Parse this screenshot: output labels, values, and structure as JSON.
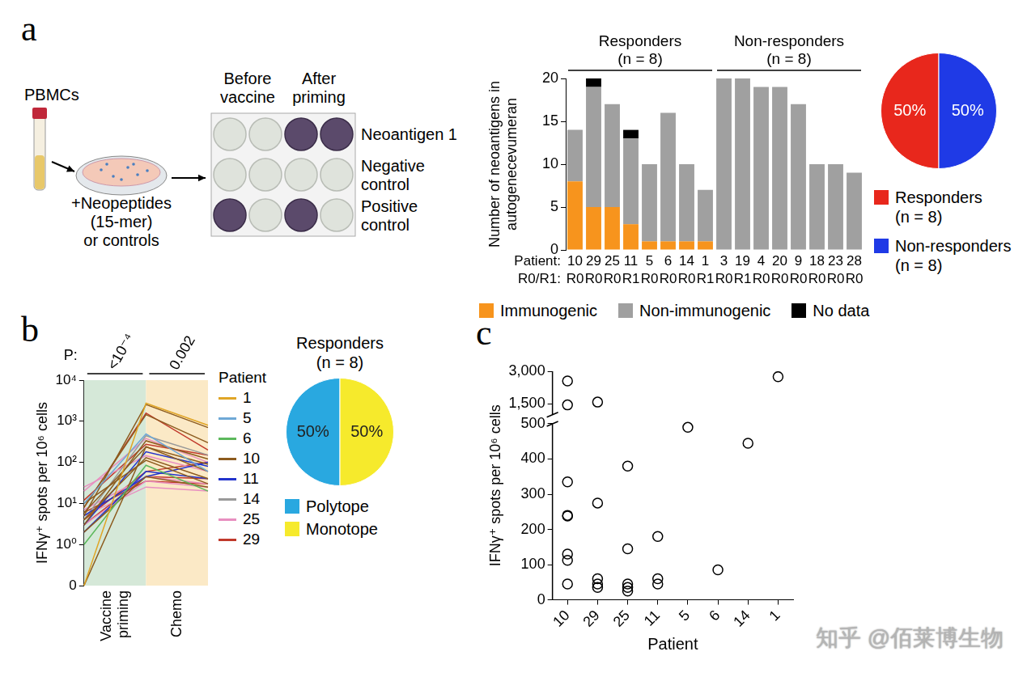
{
  "panel_letters": [
    "a",
    "b",
    "c"
  ],
  "watermark": "知乎 @佰莱博生物",
  "schematic": {
    "source": "PBMCs",
    "treatment": "+Neopeptides\n(15-mer)\nor controls",
    "columns": [
      "Before\nvaccine",
      "After\npriming"
    ],
    "rows": [
      {
        "label": "Neoantigen 1",
        "spots": [
          false,
          false,
          true,
          true
        ]
      },
      {
        "label": "Negative\ncontrol",
        "spots": [
          false,
          false,
          false,
          false
        ]
      },
      {
        "label": "Positive\ncontrol",
        "spots": [
          true,
          false,
          true,
          false
        ]
      }
    ]
  },
  "chart_data": [
    {
      "type": "bar",
      "stacked": true,
      "y_label": "Number of neoantigens in\nautogenecevumeran",
      "categories": [
        "10",
        "29",
        "25",
        "11",
        "5",
        "6",
        "14",
        "1",
        "3",
        "19",
        "4",
        "20",
        "9",
        "18",
        "23",
        "28"
      ],
      "category_label": "Patient:",
      "resection": {
        "label": "R0/R1:",
        "values": [
          "R0",
          "R0",
          "R0",
          "R1",
          "R0",
          "R0",
          "R0",
          "R1",
          "R0",
          "R1",
          "R0",
          "R0",
          "R0",
          "R0",
          "R0",
          "R0"
        ]
      },
      "groups": [
        {
          "label": "Responders\n(n = 8)",
          "members": [
            "10",
            "29",
            "25",
            "11",
            "5",
            "6",
            "14",
            "1"
          ]
        },
        {
          "label": "Non-responders\n(n = 8)",
          "members": [
            "3",
            "19",
            "4",
            "20",
            "9",
            "18",
            "23",
            "28"
          ]
        }
      ],
      "series": [
        {
          "name": "Immunogenic",
          "color": "#f7941d",
          "values": [
            8,
            5,
            5,
            3,
            1,
            1,
            1,
            1,
            0,
            0,
            0,
            0,
            0,
            0,
            0,
            0
          ]
        },
        {
          "name": "Non-immunogenic",
          "color": "#a0a0a0",
          "values": [
            6,
            14,
            12,
            10,
            9,
            15,
            9,
            6,
            20,
            20,
            19,
            19,
            17,
            10,
            10,
            9
          ]
        },
        {
          "name": "No data",
          "color": "#000000",
          "values": [
            0,
            1,
            0,
            1,
            0,
            0,
            0,
            0,
            0,
            0,
            0,
            0,
            0,
            0,
            0,
            0
          ]
        }
      ],
      "ylim": [
        0,
        20
      ],
      "yticks": [
        0,
        5,
        10,
        15,
        20
      ],
      "grid": false,
      "legend": "bottom"
    },
    {
      "type": "pie",
      "categories": [
        "Responders\n(n = 8)",
        "Non-responders\n(n = 8)"
      ],
      "values": [
        50,
        50
      ],
      "value_labels": [
        "50%",
        "50%"
      ],
      "colors": [
        "#e8271c",
        "#1f3ae6"
      ],
      "data_labels": true,
      "legend": "bottom"
    },
    {
      "type": "line",
      "log": "y",
      "y_label": "IFNγ⁺ spots per 10⁶ cells",
      "categories": [
        null,
        null,
        null
      ],
      "phases": [
        {
          "name": "Vaccine\npriming",
          "color": "#d5e8d8",
          "p": {
            "value": 0.0001,
            "label": "<10⁻⁴"
          }
        },
        {
          "name": "Chemo",
          "color": "#fbe9c6",
          "p": 0.002
        }
      ],
      "p_label": "P:",
      "legend_title": "Patient",
      "series": [
        {
          "name": "1",
          "color": "#e0a526",
          "values": [
            [
              0,
              2750,
              800
            ]
          ]
        },
        {
          "name": "5",
          "color": "#6fa8d6",
          "values": [
            [
              10,
              490,
              60
            ]
          ]
        },
        {
          "name": "6",
          "color": "#5cb85c",
          "values": [
            [
              1,
              85,
              20
            ]
          ]
        },
        {
          "name": "10",
          "color": "#8c5b1e",
          "values": [
            [
              5,
              2550,
              700
            ],
            [
              8,
              1450,
              300
            ],
            [
              3,
              335,
              120
            ],
            [
              0,
              240,
              60
            ],
            [
              6,
              238,
              90
            ],
            [
              4,
              130,
              40
            ],
            [
              10,
              112,
              30
            ],
            [
              2,
              45,
              25
            ]
          ]
        },
        {
          "name": "11",
          "color": "#2233cc",
          "values": [
            [
              3,
              180,
              80
            ],
            [
              2,
              60,
              40
            ],
            [
              5,
              45,
              100
            ]
          ]
        },
        {
          "name": "14",
          "color": "#999999",
          "values": [
            [
              4,
              445,
              150
            ]
          ]
        },
        {
          "name": "25",
          "color": "#e88fc0",
          "values": [
            [
              20,
              380,
              100
            ],
            [
              25,
              145,
              60
            ],
            [
              7,
              45,
              30
            ],
            [
              3,
              35,
              25
            ],
            [
              5,
              25,
              20
            ]
          ]
        },
        {
          "name": "29",
          "color": "#c0392b",
          "values": [
            [
              8,
              1580,
              200
            ],
            [
              12,
              275,
              150
            ],
            [
              4,
              60,
              100
            ],
            [
              3,
              45,
              40
            ],
            [
              6,
              35,
              30
            ]
          ]
        }
      ],
      "ylim": [
        0,
        10000
      ],
      "yticks": [
        0,
        {
          "value": 1,
          "label": "10⁰"
        },
        {
          "value": 10,
          "label": "10¹"
        },
        {
          "value": 100,
          "label": "10²"
        },
        {
          "value": 1000,
          "label": "10³"
        },
        {
          "value": 10000,
          "label": "10⁴"
        }
      ],
      "grid": false,
      "legend": "right"
    },
    {
      "type": "pie",
      "title": "Responders\n(n = 8)",
      "categories": [
        "Polytope",
        "Monotope"
      ],
      "values": [
        50,
        50
      ],
      "value_labels": [
        "50%",
        "50%"
      ],
      "colors": [
        "#29a8e0",
        "#f6ea2c"
      ],
      "data_labels": true,
      "legend": "bottom"
    },
    {
      "type": "scatter",
      "x_label": "Patient",
      "y_label": "IFNγ⁺ spots per 10⁶ cells",
      "categories": [
        "10",
        "29",
        "25",
        "11",
        "5",
        "6",
        "14",
        "1"
      ],
      "values": [
        [
          2550,
          1450,
          335,
          240,
          238,
          130,
          112,
          45
        ],
        [
          1580,
          275,
          60,
          45,
          35
        ],
        [
          380,
          145,
          45,
          35,
          25
        ],
        [
          180,
          60,
          45
        ],
        [
          490
        ],
        [
          85
        ],
        [
          445
        ],
        [
          2750
        ]
      ],
      "ylim": [
        0,
        3000
      ],
      "yticks": [
        0,
        100,
        200,
        300,
        400,
        500,
        {
          "value": 1500,
          "label": "1,500"
        },
        {
          "value": 3000,
          "label": "3,000"
        }
      ],
      "y_break": [
        500,
        1000
      ],
      "marker": "open_circle",
      "color": "#000000",
      "grid": false
    }
  ]
}
